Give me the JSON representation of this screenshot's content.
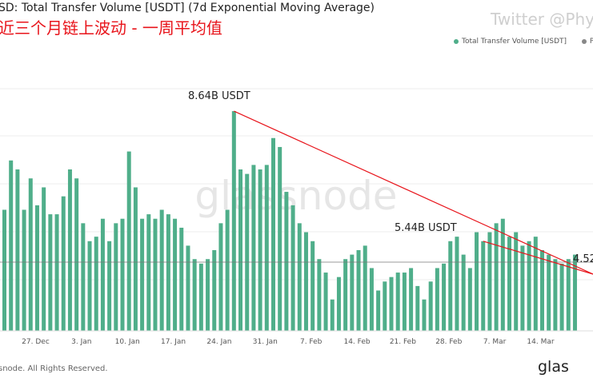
{
  "title": "SD: Total Transfer Volume [USDT] (7d Exponential Moving Average)",
  "subtitle": "近三个月链上波动 - 一周平均值",
  "watermark_text": "Twitter @Phy",
  "legend": [
    {
      "label": "Total Transfer Volume [USDT]",
      "color": "#4fae8a"
    },
    {
      "label": "P",
      "color": "#888888"
    }
  ],
  "chart_watermark": "glassnode",
  "footer_text": "snode. All Rights Reserved.",
  "brand_text": "glas",
  "colors": {
    "bar": "#4fae8a",
    "trend": "#e8141b",
    "grid": "#eeeeee",
    "price": "#777777"
  },
  "chart_data": {
    "type": "bar",
    "x_tick_labels": [
      "27. Dec",
      "3. Jan",
      "10. Jan",
      "17. Jan",
      "24. Jan",
      "31. Jan",
      "7. Feb",
      "14. Feb",
      "21. Feb",
      "28. Feb",
      "7. Mar",
      "14. Mar"
    ],
    "series": [
      {
        "name": "Total Transfer Volume [USDT]",
        "values": [
          5.2,
          6.3,
          6.1,
          5.2,
          5.9,
          5.3,
          5.7,
          5.1,
          5.1,
          5.5,
          6.1,
          5.9,
          4.9,
          4.5,
          4.6,
          5.0,
          4.5,
          4.9,
          5.0,
          6.5,
          5.7,
          5.0,
          5.1,
          5.0,
          5.2,
          5.1,
          5.0,
          4.8,
          4.4,
          4.1,
          4.0,
          4.1,
          4.3,
          4.9,
          5.2,
          7.4,
          6.1,
          6.0,
          6.2,
          6.1,
          6.2,
          6.8,
          6.6,
          5.6,
          5.3,
          4.9,
          4.7,
          4.5,
          4.1,
          3.8,
          3.2,
          3.7,
          4.1,
          4.2,
          4.3,
          4.4,
          3.9,
          3.4,
          3.6,
          3.7,
          3.8,
          3.8,
          3.9,
          3.5,
          3.2,
          3.6,
          3.9,
          4.0,
          4.5,
          4.6,
          4.2,
          3.9,
          4.7,
          4.5,
          4.7,
          4.9,
          5.0,
          4.6,
          4.7,
          4.4,
          4.5,
          4.6,
          4.3,
          4.2,
          4.1,
          4.0,
          4.1,
          4.2
        ]
      }
    ],
    "annotations": [
      {
        "label": "8.64B USDT",
        "from_index": 35,
        "to_index": 87
      },
      {
        "label": "5.44B USDT",
        "from_index": 73,
        "to_index": 87
      },
      {
        "label": "4.52",
        "at_index": 87
      }
    ],
    "grid": true
  }
}
